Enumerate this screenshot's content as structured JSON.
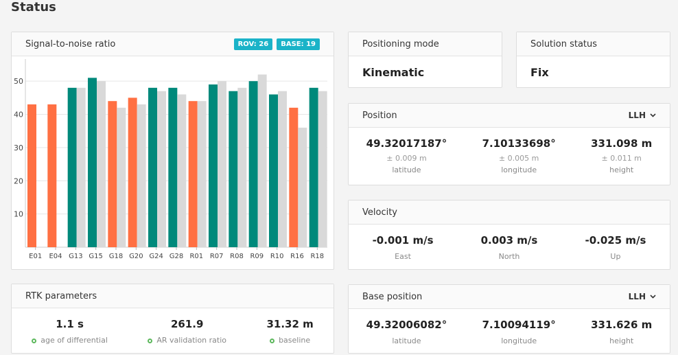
{
  "page_title": "Status",
  "snr": {
    "title": "Signal-to-noise ratio",
    "badges": {
      "rov": "ROV: 26",
      "base": "BASE: 19"
    }
  },
  "chart_data": {
    "type": "bar",
    "categories": [
      "E01",
      "E04",
      "G13",
      "G15",
      "G18",
      "G20",
      "G24",
      "G28",
      "R01",
      "R07",
      "R08",
      "R09",
      "R10",
      "R16",
      "R18"
    ],
    "series": [
      {
        "values": [
          43,
          43,
          48,
          51,
          44,
          45,
          48,
          48,
          44,
          49,
          47,
          50,
          46,
          42,
          48
        ]
      },
      {
        "values": [
          null,
          null,
          48,
          50,
          42,
          43,
          47,
          46,
          44,
          50,
          48,
          52,
          47,
          36,
          47
        ]
      }
    ],
    "rover_colors": [
      "#ff7043",
      "#ff7043",
      "#00897b",
      "#00897b",
      "#ff7043",
      "#ff7043",
      "#00897b",
      "#00897b",
      "#ff7043",
      "#00897b",
      "#00897b",
      "#00897b",
      "#00897b",
      "#ff7043",
      "#00897b"
    ],
    "base_color": "#d9d9d9",
    "yticks": [
      10,
      20,
      30,
      40,
      50
    ],
    "ylim": [
      0,
      55
    ],
    "grid": true
  },
  "positioning": {
    "title": "Positioning mode",
    "value": "Kinematic"
  },
  "solution": {
    "title": "Solution status",
    "value": "Fix"
  },
  "position": {
    "title": "Position",
    "format": "LLH",
    "cols": [
      {
        "value": "49.32017187°",
        "acc": "± 0.009 m",
        "label": "latitude"
      },
      {
        "value": "7.10133698°",
        "acc": "± 0.005 m",
        "label": "longitude"
      },
      {
        "value": "331.098 m",
        "acc": "± 0.011 m",
        "label": "height"
      }
    ]
  },
  "velocity": {
    "title": "Velocity",
    "cols": [
      {
        "value": "-0.001 m/s",
        "label": "East"
      },
      {
        "value": "0.003 m/s",
        "label": "North"
      },
      {
        "value": "-0.025 m/s",
        "label": "Up"
      }
    ]
  },
  "rtk": {
    "title": "RTK parameters",
    "cols": [
      {
        "value": "1.1 s",
        "label": "age of differential"
      },
      {
        "value": "261.9",
        "label": "AR validation ratio"
      },
      {
        "value": "31.32 m",
        "label": "baseline"
      }
    ]
  },
  "base_position": {
    "title": "Base position",
    "format": "LLH",
    "cols": [
      {
        "value": "49.32006082°",
        "label": "latitude"
      },
      {
        "value": "7.10094119°",
        "label": "longitude"
      },
      {
        "value": "331.626 m",
        "label": "height"
      }
    ]
  }
}
